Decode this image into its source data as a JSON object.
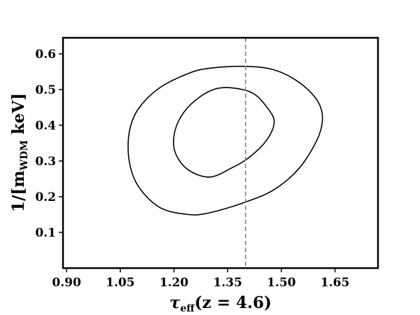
{
  "chart_data": {
    "type": "contour",
    "xlabel": {
      "main": "τ",
      "sub": "eff",
      "rest": "(z = 4.6)"
    },
    "ylabel": {
      "lead": "1/[m",
      "sub": "WDM",
      "rest": " keV]"
    },
    "xlim": [
      0.89,
      1.77
    ],
    "ylim": [
      0.0,
      0.645
    ],
    "xticks": [
      0.9,
      1.05,
      1.2,
      1.35,
      1.5,
      1.65
    ],
    "xtick_labels": [
      "0.90",
      "1.05",
      "1.20",
      "1.35",
      "1.50",
      "1.65"
    ],
    "yticks": [
      0.1,
      0.2,
      0.3,
      0.4,
      0.5,
      0.6
    ],
    "ytick_labels": [
      "0.1",
      "0.2",
      "0.3",
      "0.4",
      "0.5",
      "0.6"
    ],
    "vline": {
      "x": 1.4,
      "style": "dashed",
      "color": "#808080"
    },
    "series": [
      {
        "level": "outer",
        "color": "#000000",
        "x": [
          1.4,
          1.48,
          1.55,
          1.6,
          1.615,
          1.6,
          1.55,
          1.48,
          1.4,
          1.3,
          1.24,
          1.16,
          1.1,
          1.075,
          1.075,
          1.1,
          1.16,
          1.24,
          1.3
        ],
        "y": [
          0.565,
          0.555,
          0.52,
          0.47,
          0.42,
          0.36,
          0.28,
          0.22,
          0.185,
          0.155,
          0.15,
          0.17,
          0.23,
          0.3,
          0.38,
          0.445,
          0.505,
          0.545,
          0.56
        ]
      },
      {
        "level": "inner",
        "color": "#000000",
        "x": [
          1.36,
          1.42,
          1.46,
          1.48,
          1.46,
          1.41,
          1.36,
          1.3,
          1.24,
          1.205,
          1.2,
          1.22,
          1.26,
          1.31
        ],
        "y": [
          0.505,
          0.49,
          0.45,
          0.41,
          0.36,
          0.31,
          0.28,
          0.255,
          0.275,
          0.32,
          0.37,
          0.425,
          0.47,
          0.5
        ]
      }
    ]
  }
}
